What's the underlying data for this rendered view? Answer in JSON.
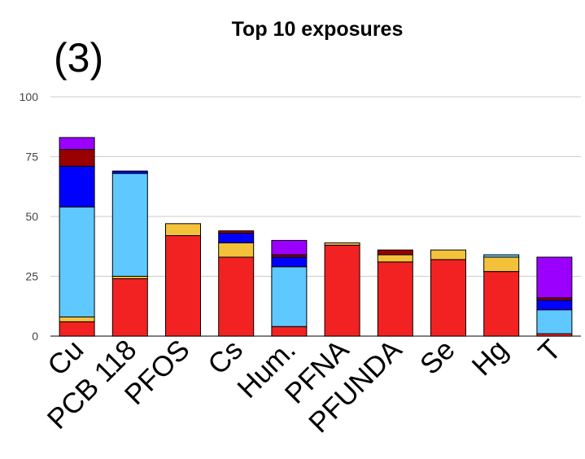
{
  "panel_label": "(3)",
  "chart_data": {
    "type": "bar",
    "stacked": true,
    "title": "Top 10 exposures",
    "xlabel": "",
    "ylabel": "",
    "ylim": [
      0,
      100
    ],
    "yticks": [
      0,
      25,
      50,
      75,
      100
    ],
    "grid": true,
    "legend": "none",
    "categories": [
      "Cu",
      "PCB 118",
      "PFOS",
      "Cs",
      "Hum.",
      "PFNA",
      "PFUNDA",
      "Se",
      "Hg",
      "T"
    ],
    "series": [
      {
        "color": "#f22222",
        "values": [
          6,
          24,
          42,
          33,
          4,
          38,
          31,
          32,
          27,
          1
        ]
      },
      {
        "color": "#f4c23a",
        "values": [
          2,
          1,
          5,
          6,
          0,
          1,
          3,
          4,
          6,
          0
        ]
      },
      {
        "color": "#5ec8ff",
        "values": [
          46,
          43,
          0,
          0,
          25,
          0,
          0,
          0,
          1,
          10
        ]
      },
      {
        "color": "#0000ff",
        "values": [
          17,
          1,
          0,
          4,
          4,
          0,
          0,
          0,
          0,
          4
        ]
      },
      {
        "color": "#990000",
        "values": [
          7,
          0,
          0,
          1,
          1,
          0,
          2,
          0,
          0,
          1
        ]
      },
      {
        "color": "#9b00ff",
        "values": [
          5,
          0,
          0,
          0,
          6,
          0,
          0,
          0,
          0,
          17
        ]
      }
    ]
  }
}
